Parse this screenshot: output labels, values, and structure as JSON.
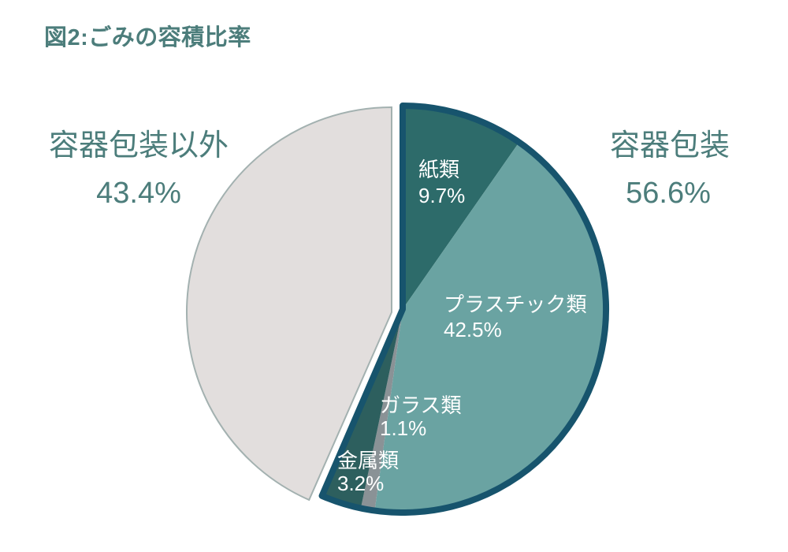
{
  "title": "図2:ごみの容積比率",
  "chart_data": {
    "type": "pie",
    "title": "図2:ごみの容積比率",
    "units": "percent",
    "direction": "clockwise",
    "start_angle_deg": 0,
    "legend_position": "none",
    "label_style": "inside-white-for-slices, outside-teal-for-groups",
    "slices": [
      {
        "label": "紙類",
        "value": 9.7,
        "display": "9.7%",
        "color": "#2d6b6a",
        "group": "容器包装"
      },
      {
        "label": "プラスチック類",
        "value": 42.5,
        "display": "42.5%",
        "color": "#6aa3a2",
        "group": "容器包装"
      },
      {
        "label": "ガラス類",
        "value": 1.1,
        "display": "1.1%",
        "color": "#8a9296",
        "group": "容器包装"
      },
      {
        "label": "金属類",
        "value": 3.2,
        "display": "3.2%",
        "color": "#2d5f5e",
        "group": "容器包装"
      },
      {
        "label": "容器包装以外",
        "value": 43.4,
        "display": "43.4%",
        "color": "#e2dedd",
        "group": "容器包装以外"
      }
    ],
    "groups": [
      {
        "label": "容器包装",
        "value": 56.6,
        "display": "56.6%",
        "side": "right"
      },
      {
        "label": "容器包装以外",
        "value": 43.4,
        "display": "43.4%",
        "side": "left"
      }
    ],
    "colors": {
      "group_outline": "#17546d",
      "gray_slice_outline": "#a3b1b0",
      "inside_label": "#ffffff",
      "outside_label": "#4c7d7b",
      "title": "#4c7d7b",
      "background": "#ffffff"
    }
  }
}
